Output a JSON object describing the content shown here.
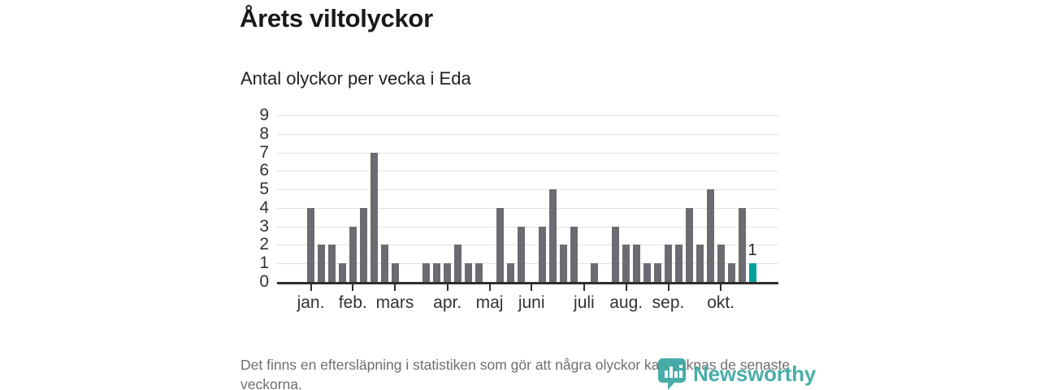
{
  "header": {
    "title": "Årets viltolyckor",
    "subtitle": "Antal olyckor per vecka i Eda"
  },
  "chart_data": {
    "type": "bar",
    "title": "Årets viltolyckor",
    "subtitle": "Antal olyckor per vecka i Eda",
    "xlabel": "",
    "ylabel": "",
    "x_unit": "vecka",
    "x": [
      1,
      2,
      3,
      4,
      5,
      6,
      7,
      8,
      9,
      10,
      11,
      12,
      13,
      14,
      15,
      16,
      17,
      18,
      19,
      20,
      21,
      22,
      23,
      24,
      25,
      26,
      27,
      28,
      29,
      30,
      31,
      32,
      33,
      34,
      35,
      36,
      37,
      38,
      39,
      40,
      41,
      42,
      43
    ],
    "values": [
      4,
      2,
      2,
      1,
      3,
      4,
      7,
      2,
      1,
      0,
      0,
      1,
      1,
      1,
      2,
      1,
      1,
      0,
      4,
      1,
      3,
      0,
      3,
      5,
      2,
      3,
      0,
      1,
      0,
      3,
      2,
      2,
      1,
      1,
      2,
      2,
      4,
      2,
      5,
      2,
      1,
      4,
      1
    ],
    "ylim": [
      0,
      9
    ],
    "yticks": [
      0,
      1,
      2,
      3,
      4,
      5,
      6,
      7,
      8,
      9
    ],
    "grid": true,
    "legend": "none",
    "month_ticks": [
      {
        "label": "jan.",
        "week": 1
      },
      {
        "label": "feb.",
        "week": 5
      },
      {
        "label": "mars",
        "week": 9
      },
      {
        "label": "apr.",
        "week": 14
      },
      {
        "label": "maj",
        "week": 18
      },
      {
        "label": "juni",
        "week": 22
      },
      {
        "label": "juli",
        "week": 27
      },
      {
        "label": "aug.",
        "week": 31
      },
      {
        "label": "sep.",
        "week": 35
      },
      {
        "label": "okt.",
        "week": 40
      }
    ],
    "highlight_last": true,
    "annotation": {
      "week": 43,
      "value": 1,
      "label": "1"
    },
    "bar_color": "#6b6b71",
    "highlight_color": "#00a39b",
    "grid_color": "#e3e3e3",
    "axis_color": "#2e2e2e"
  },
  "footer": {
    "note": "Det finns en eftersläpning i statistiken som gör att några olyckor kan saknas de senaste veckorna."
  },
  "branding": {
    "logo_text": "Newsworthy",
    "logo_color": "#3aa7a2"
  }
}
